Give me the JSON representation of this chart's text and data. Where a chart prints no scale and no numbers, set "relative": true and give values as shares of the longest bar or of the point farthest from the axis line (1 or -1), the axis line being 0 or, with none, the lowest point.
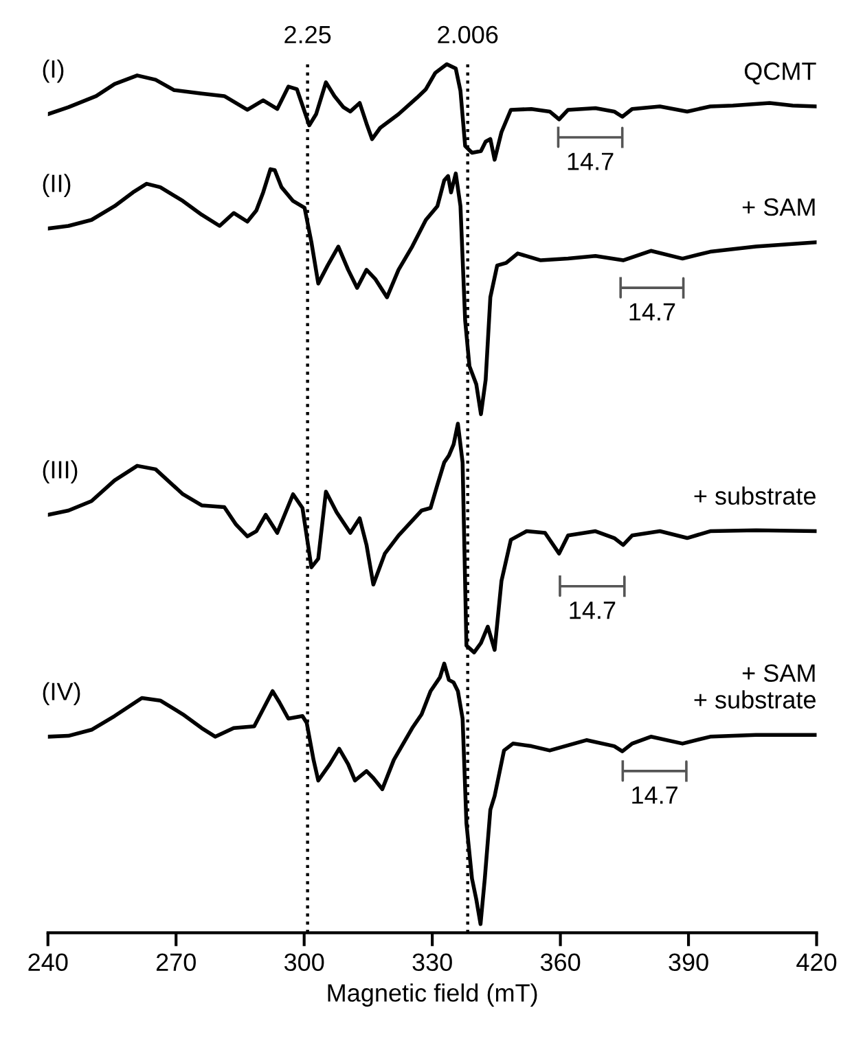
{
  "chart_data": {
    "type": "line",
    "relative": true,
    "xlabel": "Magnetic field (mT)",
    "xlim": [
      240,
      420
    ],
    "xticks": [
      240,
      270,
      300,
      330,
      360,
      390,
      420
    ],
    "tick_labels": "x",
    "grid": false,
    "marker": "none",
    "line_style": "solid",
    "ref_lines": [
      {
        "axis": "x",
        "value": 300.8,
        "color": "#000000",
        "line_style": "dotted"
      },
      {
        "axis": "x",
        "value": 338.3,
        "color": "#000000",
        "line_style": "dotted"
      }
    ],
    "series": [
      {
        "name": "QCMT",
        "color": "#000000",
        "x": [
          240.0,
          244.8,
          251.3,
          255.6,
          260.9,
          265.2,
          269.5,
          276.0,
          281.3,
          286.7,
          290.4,
          293.7,
          296.3,
          298.3,
          301.2,
          302.8,
          305.1,
          307.1,
          309.2,
          310.8,
          313.0,
          314.6,
          315.9,
          317.8,
          322.1,
          326.4,
          328.5,
          330.7,
          333.4,
          335.5,
          336.6,
          337.7,
          339.3,
          341.4,
          342.5,
          343.6,
          344.6,
          346.2,
          348.4,
          353.2,
          357.5,
          359.7,
          361.8,
          368.2,
          372.6,
          374.5,
          376.8,
          383.3,
          389.7,
          395.1,
          400.4,
          409.0,
          414.4,
          420.0
        ],
        "values": [
          0.942,
          0.95,
          0.963,
          0.977,
          0.987,
          0.982,
          0.97,
          0.966,
          0.963,
          0.947,
          0.958,
          0.948,
          0.974,
          0.971,
          0.929,
          0.942,
          0.979,
          0.963,
          0.95,
          0.945,
          0.955,
          0.931,
          0.913,
          0.926,
          0.942,
          0.961,
          0.971,
          0.99,
          1.0,
          0.995,
          0.969,
          0.905,
          0.897,
          0.899,
          0.91,
          0.913,
          0.889,
          0.921,
          0.947,
          0.948,
          0.945,
          0.936,
          0.947,
          0.949,
          0.945,
          0.939,
          0.948,
          0.951,
          0.945,
          0.951,
          0.952,
          0.955,
          0.952,
          0.951
        ]
      },
      {
        "name": "+ SAM",
        "color": "#000000",
        "x": [
          240.0,
          244.8,
          250.2,
          255.6,
          259.9,
          263.1,
          266.3,
          271.6,
          276.0,
          280.2,
          283.5,
          286.7,
          288.8,
          290.4,
          292.1,
          293.1,
          294.7,
          297.4,
          300.1,
          301.7,
          303.3,
          305.5,
          308.0,
          310.3,
          312.4,
          314.6,
          316.7,
          319.4,
          322.1,
          325.3,
          328.5,
          331.2,
          332.8,
          333.7,
          334.4,
          335.5,
          336.6,
          337.7,
          338.7,
          340.3,
          341.4,
          342.5,
          343.6,
          345.2,
          347.3,
          350.0,
          355.4,
          361.8,
          368.2,
          374.7,
          381.2,
          388.6,
          395.1,
          405.8,
          420.0
        ],
        "values": [
          0.809,
          0.812,
          0.819,
          0.835,
          0.851,
          0.861,
          0.857,
          0.841,
          0.825,
          0.812,
          0.827,
          0.817,
          0.83,
          0.851,
          0.878,
          0.877,
          0.857,
          0.841,
          0.833,
          0.793,
          0.745,
          0.766,
          0.788,
          0.761,
          0.74,
          0.761,
          0.75,
          0.729,
          0.761,
          0.788,
          0.819,
          0.835,
          0.865,
          0.87,
          0.851,
          0.873,
          0.835,
          0.702,
          0.649,
          0.628,
          0.593,
          0.633,
          0.729,
          0.766,
          0.769,
          0.78,
          0.772,
          0.774,
          0.777,
          0.772,
          0.783,
          0.774,
          0.782,
          0.788,
          0.793
        ]
      },
      {
        "name": "+ substrate",
        "color": "#000000",
        "x": [
          240.0,
          244.8,
          250.2,
          255.6,
          260.9,
          265.2,
          271.6,
          276.0,
          281.3,
          284.0,
          286.7,
          288.8,
          291.0,
          293.7,
          297.4,
          299.6,
          301.7,
          303.3,
          305.1,
          307.6,
          310.8,
          313.0,
          314.6,
          316.2,
          318.9,
          322.1,
          327.5,
          329.6,
          331.2,
          332.8,
          333.9,
          335.0,
          336.0,
          337.1,
          338.0,
          339.8,
          341.4,
          343.0,
          344.6,
          346.2,
          348.4,
          352.1,
          356.4,
          359.7,
          361.8,
          368.2,
          372.6,
          374.7,
          376.8,
          383.3,
          389.7,
          395.1,
          405.8,
          420.0
        ],
        "values": [
          0.476,
          0.481,
          0.492,
          0.516,
          0.533,
          0.529,
          0.5,
          0.487,
          0.485,
          0.465,
          0.451,
          0.457,
          0.476,
          0.455,
          0.5,
          0.484,
          0.415,
          0.425,
          0.503,
          0.479,
          0.455,
          0.472,
          0.441,
          0.395,
          0.431,
          0.452,
          0.481,
          0.484,
          0.511,
          0.537,
          0.545,
          0.558,
          0.582,
          0.537,
          0.324,
          0.316,
          0.327,
          0.346,
          0.319,
          0.399,
          0.447,
          0.457,
          0.455,
          0.431,
          0.452,
          0.457,
          0.449,
          0.441,
          0.452,
          0.457,
          0.449,
          0.457,
          0.458,
          0.457
        ]
      },
      {
        "name": "+ SAM\n+ substrate",
        "color": "#000000",
        "x": [
          240.0,
          244.8,
          250.2,
          255.6,
          262.0,
          266.3,
          271.6,
          276.0,
          279.2,
          283.5,
          288.3,
          290.4,
          292.6,
          294.2,
          296.3,
          299.6,
          300.6,
          302.2,
          303.3,
          306.0,
          308.2,
          310.3,
          311.9,
          314.6,
          316.2,
          318.3,
          321.0,
          325.3,
          327.5,
          329.6,
          331.8,
          332.8,
          333.9,
          335.0,
          336.0,
          337.1,
          338.0,
          339.3,
          340.3,
          341.3,
          342.3,
          343.6,
          344.6,
          346.8,
          348.9,
          353.2,
          357.5,
          366.1,
          372.6,
          374.5,
          376.8,
          381.2,
          388.6,
          395.1,
          405.8,
          420.0
        ],
        "values": [
          0.218,
          0.219,
          0.226,
          0.242,
          0.263,
          0.26,
          0.244,
          0.228,
          0.218,
          0.228,
          0.23,
          0.25,
          0.271,
          0.258,
          0.239,
          0.242,
          0.234,
          0.191,
          0.167,
          0.186,
          0.204,
          0.186,
          0.167,
          0.178,
          0.17,
          0.157,
          0.191,
          0.228,
          0.244,
          0.271,
          0.287,
          0.303,
          0.284,
          0.281,
          0.271,
          0.239,
          0.117,
          0.053,
          0.029,
          0.0,
          0.053,
          0.133,
          0.149,
          0.202,
          0.21,
          0.207,
          0.202,
          0.214,
          0.207,
          0.201,
          0.21,
          0.218,
          0.21,
          0.218,
          0.22,
          0.22
        ]
      },
      {
        "color": "#555555",
        "x": [
          359.5,
          359.5,
          359.5,
          374.5,
          374.5,
          374.5
        ],
        "values": [
          0.926,
          0.904,
          0.915,
          0.915,
          0.926,
          0.904
        ]
      },
      {
        "color": "#555555",
        "x": [
          374.1,
          374.1,
          374.1,
          388.8,
          388.8,
          388.8
        ],
        "values": [
          0.751,
          0.729,
          0.74,
          0.74,
          0.751,
          0.729
        ]
      },
      {
        "color": "#555555",
        "x": [
          359.9,
          359.9,
          359.9,
          375.0,
          375.0,
          375.0
        ],
        "values": [
          0.404,
          0.382,
          0.393,
          0.393,
          0.404,
          0.382
        ]
      },
      {
        "color": "#555555",
        "x": [
          374.6,
          374.6,
          374.6,
          389.5,
          389.5,
          389.5
        ],
        "values": [
          0.189,
          0.167,
          0.178,
          0.178,
          0.189,
          0.167
        ]
      }
    ],
    "annotations": [
      "2.25",
      "2.006",
      "(I)",
      "(II)",
      "(III)",
      "(IV)",
      "14.7",
      "14.7",
      "14.7",
      "14.7"
    ]
  }
}
